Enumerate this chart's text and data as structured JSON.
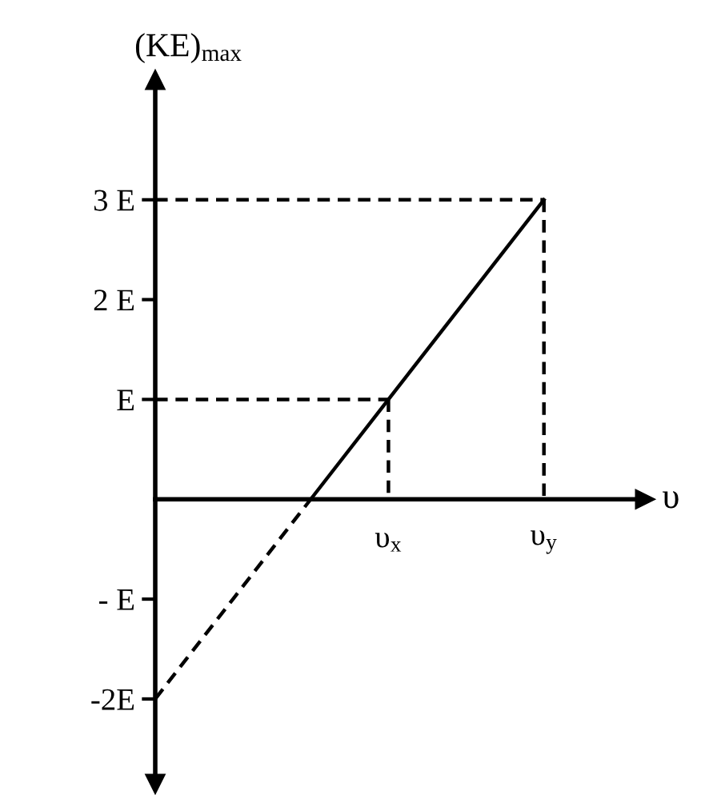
{
  "chart_data": {
    "type": "line",
    "xlabel": "υ",
    "ylabel": "(KE)$_{max}$",
    "categories": [
      null,
      null,
      null,
      "υ$_{x}$",
      null,
      "υ$_{y}$"
    ],
    "ylim": [
      -2.85,
      4.2
    ],
    "yticks": [
      {
        "value": 3,
        "label": "3 E"
      },
      {
        "value": 2,
        "label": "2 E"
      },
      {
        "value": 1,
        "label": "E"
      },
      {
        "value": -1,
        "label": "- E"
      },
      {
        "value": -2,
        "label": "-2E"
      }
    ],
    "series": [
      {
        "color": "#000000",
        "line_style": "dashed",
        "values": [
          -2,
          -1,
          0,
          null,
          null,
          null
        ]
      },
      {
        "color": "#000000",
        "line_style": "solid",
        "values": [
          null,
          null,
          0,
          1,
          2,
          3
        ]
      },
      {
        "color": "#000000",
        "line_style": "dashed",
        "values": [
          1,
          1,
          1,
          1,
          null,
          null
        ]
      },
      {
        "color": "#000000",
        "line_style": "dashed",
        "x": [
          "υ$_{x}$",
          "υ$_{x}$"
        ],
        "values": [
          1,
          0
        ]
      },
      {
        "color": "#000000",
        "line_style": "dashed",
        "values": [
          3,
          3,
          3,
          3,
          3,
          3
        ]
      },
      {
        "color": "#000000",
        "line_style": "dashed",
        "x": [
          "υ$_{y}$",
          "υ$_{y}$"
        ],
        "values": [
          3,
          0
        ]
      }
    ]
  }
}
